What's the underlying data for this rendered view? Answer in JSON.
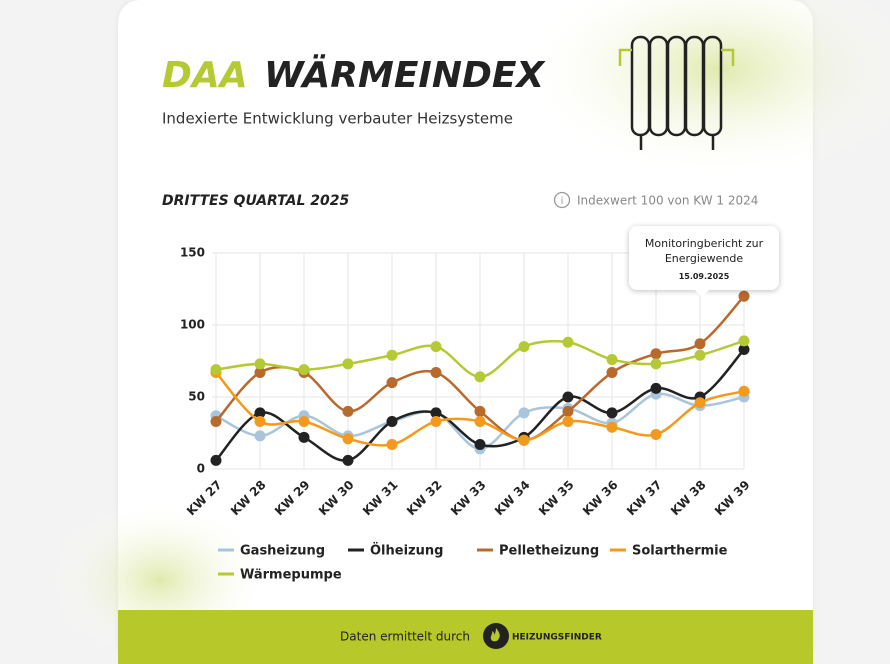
{
  "header": {
    "logo": "DAA",
    "title": "WÄRMEINDEX",
    "subtitle": "Indexierte Entwicklung verbauter Heizsysteme"
  },
  "chart_data": {
    "type": "line",
    "title": "DRITTES QUARTAL 2025",
    "note": "Indexwert 100 von KW 1 2024",
    "categories": [
      "KW 27",
      "KW 28",
      "KW 29",
      "KW 30",
      "KW 31",
      "KW 32",
      "KW 33",
      "KW 34",
      "KW 35",
      "KW 36",
      "KW 37",
      "KW 38",
      "KW 39"
    ],
    "series": [
      {
        "name": "Gasheizung",
        "color": "#a8c5dc",
        "values": [
          37,
          23,
          37,
          23,
          33,
          39,
          14,
          39,
          42,
          32,
          52,
          44,
          50
        ]
      },
      {
        "name": "Ölheizung",
        "color": "#222222",
        "values": [
          6,
          39,
          22,
          6,
          33,
          39,
          17,
          22,
          50,
          39,
          56,
          50,
          83
        ]
      },
      {
        "name": "Pelletheizung",
        "color": "#b8692e",
        "values": [
          33,
          67,
          67,
          40,
          60,
          67,
          40,
          20,
          40,
          67,
          80,
          87,
          120
        ]
      },
      {
        "name": "Solarthermie",
        "color": "#f39a1c",
        "values": [
          67,
          33,
          33,
          21,
          17,
          33,
          33,
          20,
          33,
          29,
          24,
          46,
          54
        ]
      },
      {
        "name": "Wärmepumpe",
        "color": "#b5c935",
        "values": [
          69,
          73,
          69,
          73,
          79,
          85,
          64,
          85,
          88,
          76,
          73,
          79,
          89
        ]
      }
    ],
    "ylim": [
      0,
      150
    ],
    "yticks": [
      0,
      50,
      100,
      150
    ],
    "grid": true,
    "annotation": {
      "text": "Monitoringbericht zur Energiewende",
      "date": "15.09.2025"
    }
  },
  "footer": {
    "text": "Daten ermittelt durch",
    "brand": "HEIZUNGSFINDER"
  }
}
